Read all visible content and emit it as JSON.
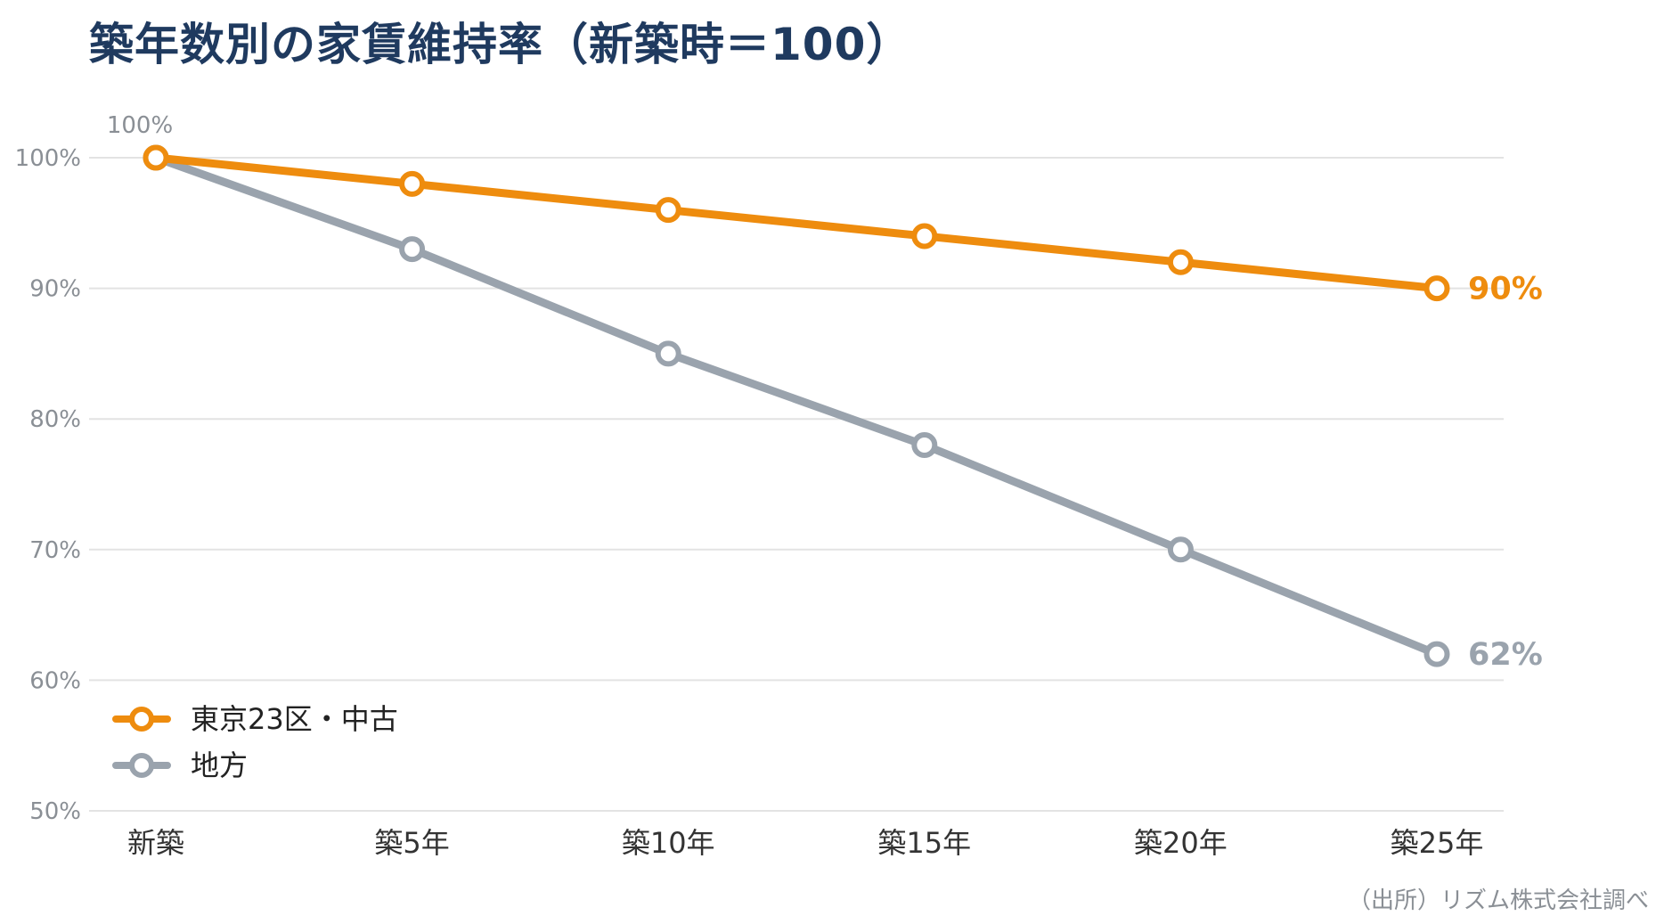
{
  "title": "築年数別の家賃維持率（新築時＝100）",
  "source": "（出所）リズム株式会社調べ",
  "chart_data": {
    "type": "line",
    "categories": [
      "新築",
      "築5年",
      "築10年",
      "築15年",
      "築20年",
      "築25年"
    ],
    "ylim": [
      50,
      100
    ],
    "yticks": [
      50,
      60,
      70,
      80,
      90,
      100
    ],
    "ytick_labels": [
      "50%",
      "60%",
      "70%",
      "80%",
      "90%",
      "100%"
    ],
    "grid": true,
    "legend_position": "bottom-left",
    "series": [
      {
        "name": "東京23区・中古",
        "color": "#ee8c0e",
        "values": [
          100,
          98,
          96,
          94,
          92,
          90
        ],
        "end_label": "90%"
      },
      {
        "name": "地方",
        "color": "#9aa3ad",
        "values": [
          100,
          93,
          85,
          78,
          70,
          62
        ],
        "end_label": "62%"
      }
    ],
    "annotations": [
      {
        "text": "100%",
        "category": "新築",
        "value": 100
      }
    ]
  }
}
